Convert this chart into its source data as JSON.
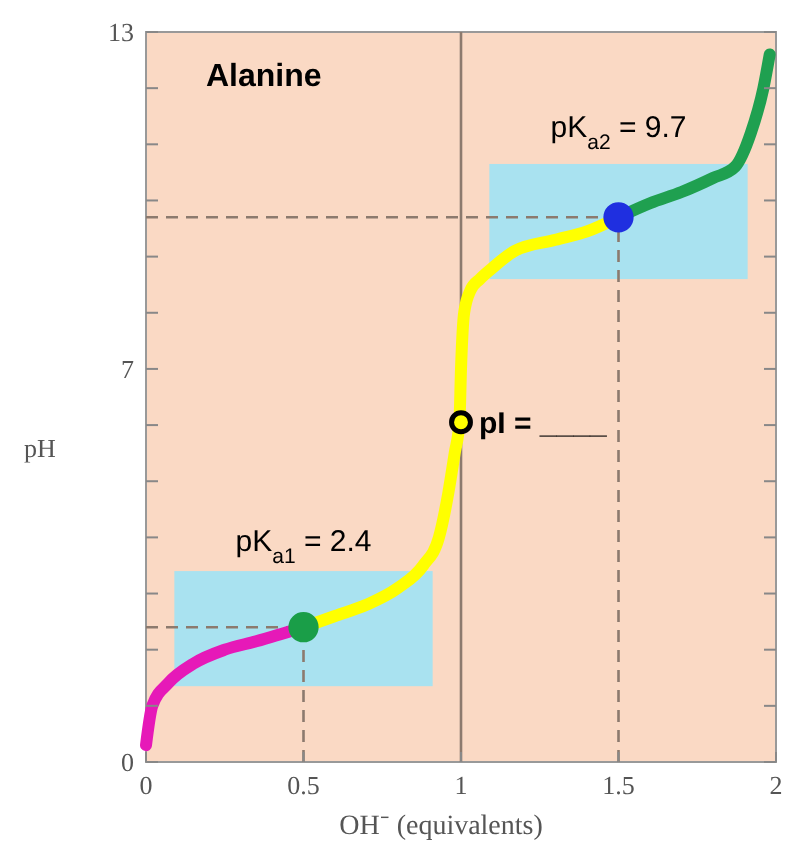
{
  "chart_data": {
    "type": "line",
    "title": "Alanine",
    "xlabel": "OH⁻ (equivalents)",
    "ylabel": "pH",
    "xlim": [
      0,
      2
    ],
    "ylim": [
      0,
      13
    ],
    "xticks": [
      0,
      0.5,
      1,
      1.5,
      2
    ],
    "yticks": [
      0,
      {
        "value": 1,
        "label": null
      },
      {
        "value": 2,
        "label": null
      },
      {
        "value": 3,
        "label": null
      },
      {
        "value": 4,
        "label": null
      },
      {
        "value": 5,
        "label": null
      },
      {
        "value": 6,
        "label": null
      },
      7,
      {
        "value": 8,
        "label": null
      },
      {
        "value": 9,
        "label": null
      },
      {
        "value": 10,
        "label": null
      },
      {
        "value": 11,
        "label": null
      },
      {
        "value": 12,
        "label": null
      },
      13
    ],
    "grid": false,
    "line_style": "solid",
    "series": [
      {
        "color": "#e619b8",
        "x": [
          0,
          0.02,
          0.07,
          0.15,
          0.25,
          0.35,
          0.5
        ],
        "values": [
          0.3,
          1.0,
          1.4,
          1.75,
          2.0,
          2.15,
          2.4
        ]
      },
      {
        "color": "#ffff00",
        "x": [
          0.5,
          0.6,
          0.7,
          0.8,
          0.88,
          0.93,
          0.96,
          0.98,
          0.995,
          1.0,
          1.01,
          1.03,
          1.06,
          1.1,
          1.17,
          1.3,
          1.4,
          1.5
        ],
        "values": [
          2.4,
          2.6,
          2.8,
          3.1,
          3.5,
          4.0,
          4.8,
          5.5,
          6.05,
          7.0,
          8.0,
          8.4,
          8.6,
          8.8,
          9.1,
          9.3,
          9.45,
          9.7
        ]
      },
      {
        "color": "#1fa050",
        "x": [
          1.5,
          1.6,
          1.7,
          1.8,
          1.87,
          1.92,
          1.96,
          1.98
        ],
        "values": [
          9.7,
          9.95,
          10.15,
          10.4,
          10.6,
          11.2,
          12.0,
          12.6
        ]
      },
      {
        "type": "scatter",
        "marker": "circle",
        "color": "#1a9e48",
        "x": [
          0.5
        ],
        "values": [
          2.4
        ]
      },
      {
        "type": "scatter",
        "marker": "circle",
        "color": "#1f2fe0",
        "x": [
          1.5
        ],
        "values": [
          9.7
        ]
      },
      {
        "type": "scatter",
        "marker": "circle",
        "color": "#ffff00",
        "x": [
          1.0
        ],
        "values": [
          6.05
        ]
      }
    ],
    "ref_lines": [
      {
        "axis": "x",
        "value": 1,
        "color": "#8c7a6e",
        "line_style": "solid"
      },
      {
        "axis": "y",
        "value": 2.4,
        "color": "#8c7a6e",
        "line_style": "dashed"
      },
      {
        "axis": "x",
        "value": 0.5,
        "color": "#8c7a6e",
        "line_style": "dashed"
      },
      {
        "axis": "y",
        "value": 9.7,
        "color": "#8c7a6e",
        "line_style": "dashed"
      },
      {
        "axis": "x",
        "value": 1.5,
        "color": "#8c7a6e",
        "line_style": "dashed"
      }
    ],
    "bands": [
      {
        "axis": "y",
        "from": 1.35,
        "to": 3.4,
        "color": "#a9e2f0"
      },
      {
        "axis": "y",
        "from": 8.6,
        "to": 10.65,
        "color": "#a9e2f0"
      }
    ],
    "annotations": [
      {
        "text": "pK$_{a1}$ = 2.4",
        "x": 0.5,
        "y": 2.4
      },
      {
        "text": "pK$_{a2}$ = 9.7",
        "x": 1.5,
        "y": 9.7
      },
      {
        "text": "pI = ____",
        "x": 1.0,
        "y": 6.05
      }
    ]
  }
}
